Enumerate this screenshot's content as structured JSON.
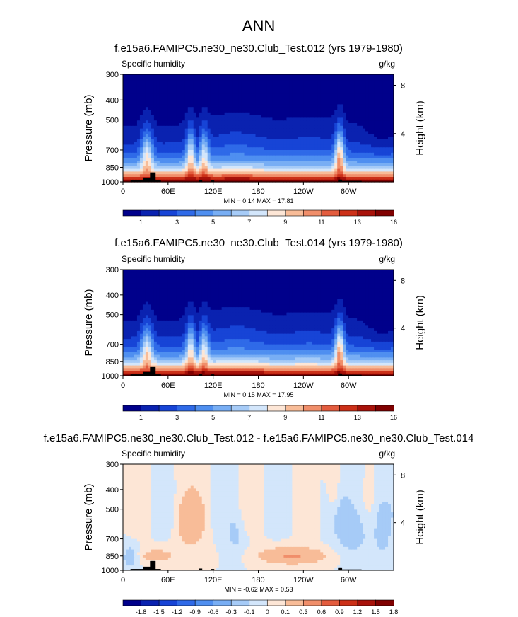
{
  "figure_title": "ANN",
  "palettes": {
    "abs": [
      "#00008b",
      "#0a22b0",
      "#1744d6",
      "#2f6ae8",
      "#4f8ff0",
      "#78aef4",
      "#a6cbf7",
      "#d3e6fb",
      "#fde6d6",
      "#f8bc98",
      "#f08e6a",
      "#e35c3e",
      "#cc3018",
      "#a8120a",
      "#800000"
    ],
    "diff": [
      "#00008b",
      "#0a22b0",
      "#1744d6",
      "#2f6ae8",
      "#4f8ff0",
      "#78aef4",
      "#a6cbf7",
      "#d3e6fb",
      "#fde6d6",
      "#f8bc98",
      "#f08e6a",
      "#e35c3e",
      "#cc3018",
      "#a8120a",
      "#800000"
    ]
  },
  "land_color": "#000000",
  "chart_data": [
    {
      "type": "heatmap",
      "title": "f.e15a6.FAMIPC5.ne30_ne30.Club_Test.012 (yrs 1979-1980)",
      "left_label": "Specific humidity",
      "units": "g/kg",
      "ylabel": "Pressure (mb)",
      "y2label": "Height (km)",
      "ytick_labels": [
        "300",
        "400",
        "500",
        "700",
        "850",
        "1000"
      ],
      "y2tick_labels": [
        "8",
        "4"
      ],
      "xtick_labels": [
        "0",
        "60E",
        "120E",
        "180",
        "120W",
        "60W"
      ],
      "xlim": [
        0,
        360
      ],
      "ylim": [
        1000,
        300
      ],
      "stats": "MIN =   0.14  MAX =   17.81",
      "min": 0.14,
      "max": 17.81,
      "colorbar_labels": [
        "1",
        "3",
        "5",
        "7",
        "9",
        "11",
        "13",
        "16"
      ],
      "colorbar_levels": [
        1,
        2,
        3,
        4,
        5,
        6,
        7,
        8,
        9,
        10,
        11,
        12,
        13,
        14,
        16
      ]
    },
    {
      "type": "heatmap",
      "title": "f.e15a6.FAMIPC5.ne30_ne30.Club_Test.014 (yrs 1979-1980)",
      "left_label": "Specific humidity",
      "units": "g/kg",
      "ylabel": "Pressure (mb)",
      "y2label": "Height (km)",
      "ytick_labels": [
        "300",
        "400",
        "500",
        "700",
        "850",
        "1000"
      ],
      "y2tick_labels": [
        "8",
        "4"
      ],
      "xtick_labels": [
        "0",
        "60E",
        "120E",
        "180",
        "120W",
        "60W"
      ],
      "xlim": [
        0,
        360
      ],
      "ylim": [
        1000,
        300
      ],
      "stats": "MIN =   0.15  MAX =   17.95",
      "min": 0.15,
      "max": 17.95,
      "colorbar_labels": [
        "1",
        "3",
        "5",
        "7",
        "9",
        "11",
        "13",
        "16"
      ],
      "colorbar_levels": [
        1,
        2,
        3,
        4,
        5,
        6,
        7,
        8,
        9,
        10,
        11,
        12,
        13,
        14,
        16
      ]
    },
    {
      "type": "heatmap",
      "title": "f.e15a6.FAMIPC5.ne30_ne30.Club_Test.012 - f.e15a6.FAMIPC5.ne30_ne30.Club_Test.014",
      "left_label": "Specific humidity",
      "units": "g/kg",
      "ylabel": "Pressure (mb)",
      "y2label": "Height (km)",
      "ytick_labels": [
        "300",
        "400",
        "500",
        "700",
        "850",
        "1000"
      ],
      "y2tick_labels": [
        "8",
        "4"
      ],
      "xtick_labels": [
        "0",
        "60E",
        "120E",
        "180",
        "120W",
        "60W"
      ],
      "xlim": [
        0,
        360
      ],
      "ylim": [
        1000,
        300
      ],
      "stats": "MIN =  -0.62  MAX =   0.53",
      "min": -0.62,
      "max": 0.53,
      "colorbar_labels": [
        "-1.8",
        "-1.5",
        "-1.2",
        "-0.9",
        "-0.6",
        "-0.3",
        "-0.1",
        "0",
        "0.1",
        "0.3",
        "0.6",
        "0.9",
        "1.2",
        "1.5",
        "1.8"
      ],
      "colorbar_levels": [
        -1.8,
        -1.5,
        -1.2,
        -0.9,
        -0.6,
        -0.3,
        -0.1,
        0,
        0.1,
        0.3,
        0.6,
        0.9,
        1.2,
        1.5,
        1.8
      ]
    }
  ]
}
